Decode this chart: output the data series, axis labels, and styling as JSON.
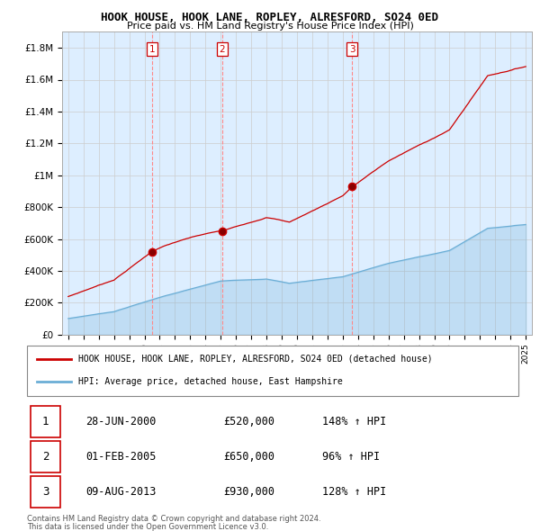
{
  "title": "HOOK HOUSE, HOOK LANE, ROPLEY, ALRESFORD, SO24 0ED",
  "subtitle": "Price paid vs. HM Land Registry's House Price Index (HPI)",
  "sale_labels": [
    "1",
    "2",
    "3"
  ],
  "sale_date_strs": [
    "28-JUN-2000",
    "01-FEB-2005",
    "09-AUG-2013"
  ],
  "sale_price_strs": [
    "£520,000",
    "£650,000",
    "£930,000"
  ],
  "sale_hpi_strs": [
    "148% ↑ HPI",
    "96% ↑ HPI",
    "128% ↑ HPI"
  ],
  "legend_line1": "HOOK HOUSE, HOOK LANE, ROPLEY, ALRESFORD, SO24 0ED (detached house)",
  "legend_line2": "HPI: Average price, detached house, East Hampshire",
  "footer1": "Contains HM Land Registry data © Crown copyright and database right 2024.",
  "footer2": "This data is licensed under the Open Government Licence v3.0.",
  "hpi_color": "#6baed6",
  "sale_line_color": "#cc0000",
  "vline_color": "#ff8888",
  "background_color": "#ffffff",
  "grid_color": "#cccccc",
  "chart_bg_color": "#ddeeff",
  "ylim": [
    0,
    1900000
  ],
  "yticks": [
    0,
    200000,
    400000,
    600000,
    800000,
    1000000,
    1200000,
    1400000,
    1600000,
    1800000
  ],
  "ytick_labels": [
    "£0",
    "£200K",
    "£400K",
    "£600K",
    "£800K",
    "£1M",
    "£1.2M",
    "£1.4M",
    "£1.6M",
    "£1.8M"
  ],
  "sale_times": [
    2000.495,
    2005.085,
    2013.606
  ],
  "sale_prices": [
    520000,
    650000,
    930000
  ]
}
